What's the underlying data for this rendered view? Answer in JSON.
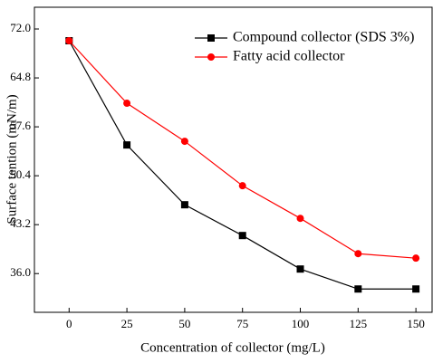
{
  "chart_data": {
    "type": "line",
    "x_label": "Concentration of collector (mg/L)",
    "y_label": "Surface tention (mN/m)",
    "x": [
      0,
      25,
      50,
      75,
      100,
      125,
      150
    ],
    "series": [
      {
        "name": "Compound collector (SDS 3%)",
        "color": "#000000",
        "marker": "square",
        "values": [
          70.27,
          54.93,
          46.13,
          41.6,
          36.67,
          33.73,
          33.73
        ]
      },
      {
        "name": "Fatty acid collector",
        "color": "#ff0000",
        "marker": "circle",
        "values": [
          70.27,
          61.07,
          55.47,
          48.93,
          44.13,
          38.93,
          38.27
        ]
      }
    ],
    "xlim": [
      -15,
      157
    ],
    "ylim": [
      30.3,
      75.2
    ],
    "xticks": [
      0,
      25,
      50,
      75,
      100,
      125,
      150
    ],
    "yticks": [
      {
        "value": 36,
        "label": "36.0"
      },
      43.2,
      50.4,
      57.6,
      64.8,
      {
        "value": 72,
        "label": "72.0"
      }
    ],
    "grid": false,
    "legend": "upper-right"
  }
}
